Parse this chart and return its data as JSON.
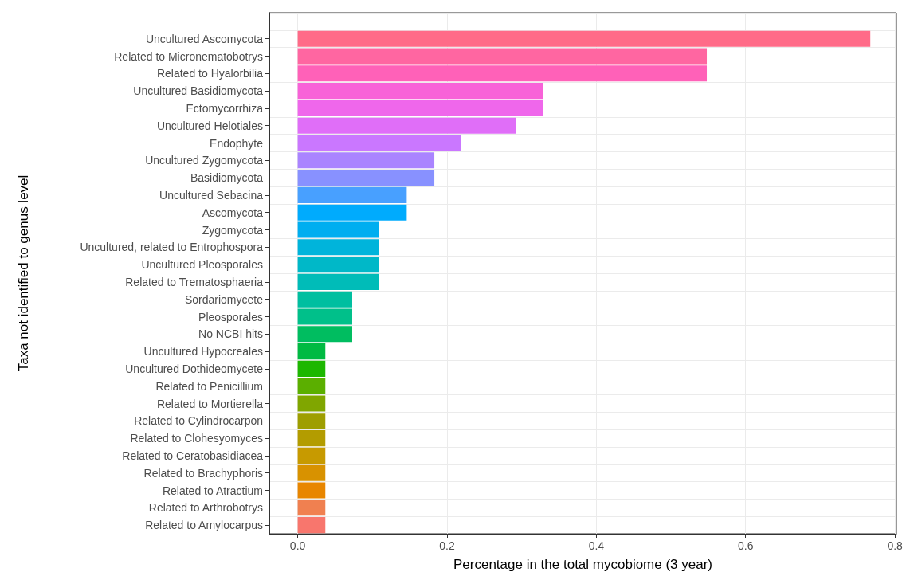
{
  "chart_data": {
    "type": "bar",
    "orientation": "horizontal",
    "xlabel": "Percentage in the total mycobiome (3 year)",
    "ylabel": "Taxa not identified to genus level",
    "categories": [
      null,
      "Uncultured Ascomycota",
      "Related to Micronematobotrys",
      "Related to Hyalorbilia",
      "Uncultured Basidiomycota",
      "Ectomycorrhiza",
      "Uncultured Helotiales",
      "Endophyte",
      "Uncultured Zygomycota",
      "Basidiomycota",
      "Uncultured Sebacina",
      "Ascomycota",
      "Zygomycota",
      "Uncultured, related to Entrophospora",
      "Uncultured Pleosporales",
      "Related to Trematosphaeria",
      "Sordariomycete",
      "Pleosporales",
      "No NCBI hits",
      "Uncultured Hypocreales",
      "Uncultured Dothideomycete",
      "Related to Penicillium",
      "Related to Mortierella",
      "Related to Cylindrocarpon",
      "Related to Clohesyomyces",
      "Related to Ceratobasidiacea",
      "Related to Brachyphoris",
      "Related to Atractium",
      "Related to Arthrobotrys",
      "Related to Amylocarpus"
    ],
    "values": [
      null,
      0.767,
      0.548,
      0.548,
      0.329,
      0.329,
      0.292,
      0.219,
      0.183,
      0.183,
      0.146,
      0.146,
      0.109,
      0.109,
      0.109,
      0.109,
      0.073,
      0.073,
      0.073,
      0.037,
      0.037,
      0.037,
      0.037,
      0.037,
      0.037,
      0.037,
      0.037,
      0.037,
      0.037,
      0.037
    ],
    "colors": [
      null,
      "#ff6b88",
      "#ff66a1",
      "#ff61b8",
      "#f862d8",
      "#ef67eb",
      "#e06ef8",
      "#ca77ff",
      "#aa84ff",
      "#8891ff",
      "#48a0ff",
      "#00abfd",
      "#00aef0",
      "#00b4db",
      "#00b8c8",
      "#00bcb8",
      "#00bfa0",
      "#00c08a",
      "#00bd60",
      "#00ba42",
      "#1db700",
      "#5baf00",
      "#80a600",
      "#9e9e00",
      "#b39c00",
      "#c79a00",
      "#d89200",
      "#e88600",
      "#f08050",
      "#f8766d"
    ],
    "xlim": [
      -0.038,
      0.802
    ],
    "xticks": [
      {
        "value": 0,
        "label": "0.0"
      },
      0.2,
      0.4,
      0.6,
      0.8
    ],
    "grid": true
  }
}
